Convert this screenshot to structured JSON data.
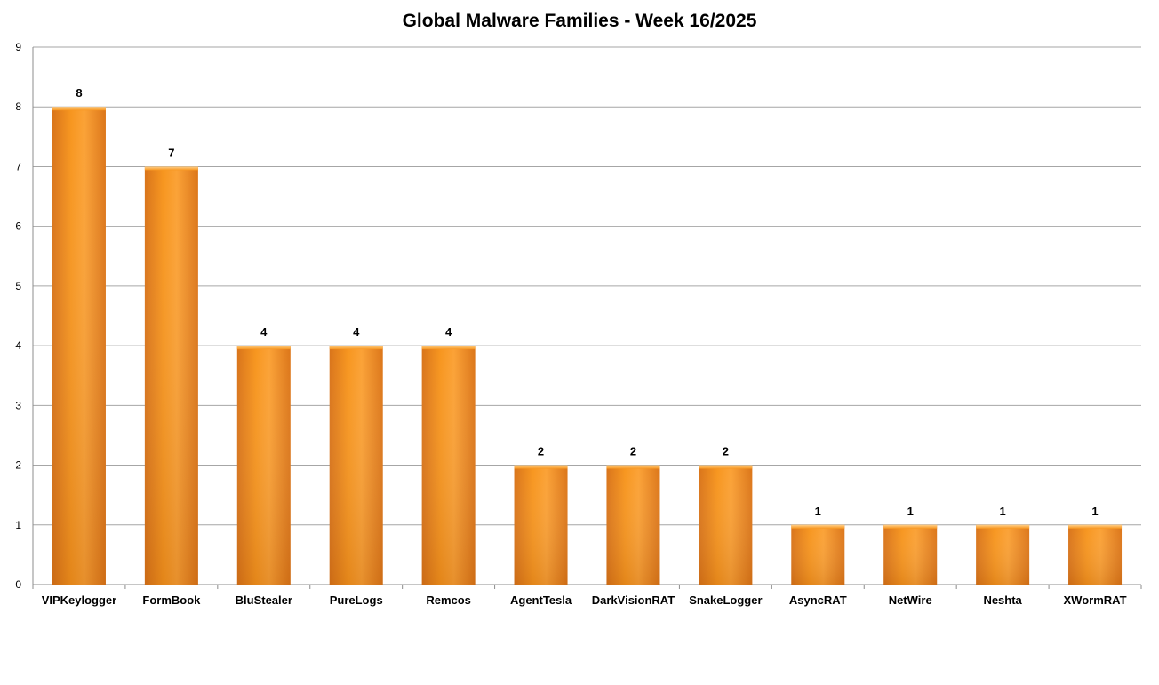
{
  "chart_data": {
    "type": "bar",
    "title": "Global Malware Families - Week 16/2025",
    "xlabel": "",
    "ylabel": "",
    "ylim": [
      0,
      9
    ],
    "yticks": [
      0,
      1,
      2,
      3,
      4,
      5,
      6,
      7,
      8,
      9
    ],
    "grid": true,
    "legend": "none",
    "bar_color": "#f7941d",
    "categories": [
      "VIPKeylogger",
      "FormBook",
      "BluStealer",
      "PureLogs",
      "Remcos",
      "AgentTesla",
      "DarkVisionRAT",
      "SnakeLogger",
      "AsyncRAT",
      "NetWire",
      "Neshta",
      "XWormRAT"
    ],
    "values": [
      8,
      7,
      4,
      4,
      4,
      2,
      2,
      2,
      1,
      1,
      1,
      1
    ]
  }
}
